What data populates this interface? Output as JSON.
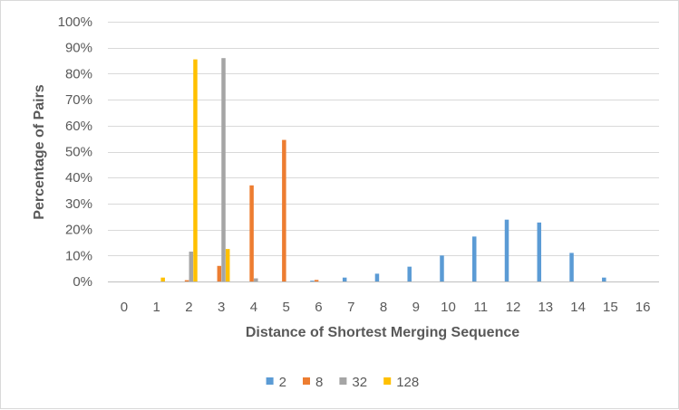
{
  "chart_data": {
    "type": "bar",
    "title": "",
    "xlabel": "Distance of Shortest Merging Sequence",
    "ylabel": "Percentage of Pairs",
    "categories": [
      "0",
      "1",
      "2",
      "3",
      "4",
      "5",
      "6",
      "7",
      "8",
      "9",
      "10",
      "11",
      "12",
      "13",
      "14",
      "15",
      "16"
    ],
    "ylim": [
      0,
      100
    ],
    "yticks": [
      "0%",
      "10%",
      "20%",
      "30%",
      "40%",
      "50%",
      "60%",
      "70%",
      "80%",
      "90%",
      "100%"
    ],
    "grid": true,
    "legend_position": "bottom",
    "series": [
      {
        "name": "2",
        "color": "#5B9BD5",
        "values": [
          0,
          0,
          0,
          0,
          0,
          0,
          0.3,
          1.5,
          3,
          5.7,
          10,
          17.3,
          23.8,
          22.7,
          11,
          1.5,
          0
        ]
      },
      {
        "name": "8",
        "color": "#ED7D31",
        "values": [
          0,
          0,
          0.5,
          6,
          37,
          54.5,
          0.6,
          0,
          0,
          0,
          0,
          0,
          0,
          0,
          0,
          0,
          0
        ]
      },
      {
        "name": "32",
        "color": "#A5A5A5",
        "values": [
          0,
          0,
          11.5,
          86,
          1.2,
          0,
          0,
          0,
          0,
          0,
          0,
          0,
          0,
          0,
          0,
          0,
          0
        ]
      },
      {
        "name": "128",
        "color": "#FFC000",
        "values": [
          0,
          1.5,
          85.5,
          12.5,
          0,
          0,
          0,
          0,
          0,
          0,
          0,
          0,
          0,
          0,
          0,
          0,
          0
        ]
      }
    ]
  }
}
